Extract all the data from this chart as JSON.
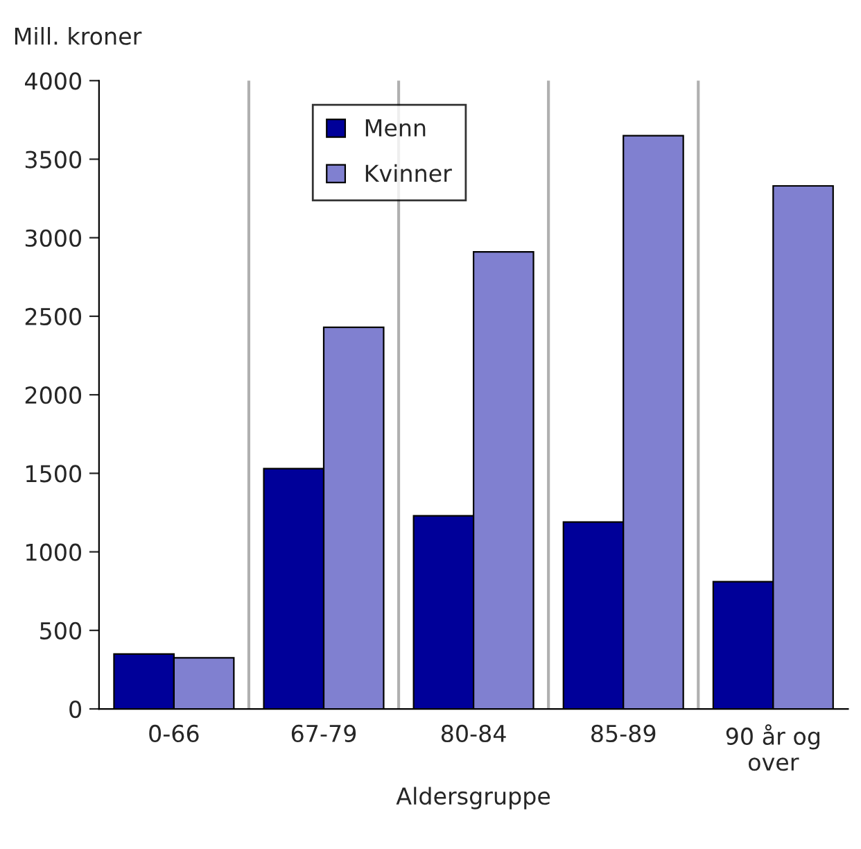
{
  "chart_data": {
    "type": "bar",
    "ylabel": "Mill. kroner",
    "xlabel": "Aldersgruppe",
    "categories": [
      "0-66",
      "67-79",
      "80-84",
      "85-89",
      "90 år og\nover"
    ],
    "series": [
      {
        "name": "Menn",
        "color": "#000099",
        "values": [
          350,
          1530,
          1230,
          1190,
          810
        ]
      },
      {
        "name": "Kvinner",
        "color": "#8080d0",
        "values": [
          325,
          2430,
          2910,
          3650,
          3330
        ]
      }
    ],
    "ylim": [
      0,
      4000
    ],
    "yticks": [
      0,
      500,
      1000,
      1500,
      2000,
      2500,
      3000,
      3500,
      4000
    ],
    "grid": "x",
    "legend": "top left"
  }
}
